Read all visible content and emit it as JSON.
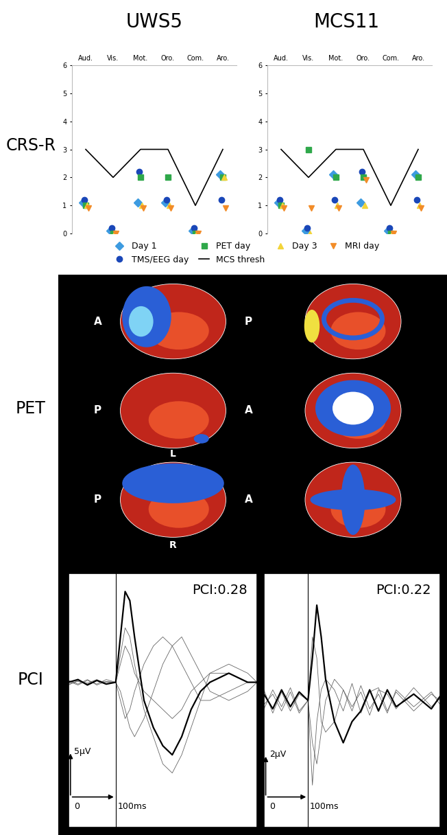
{
  "row_labels": [
    "CRS-R",
    "PET",
    "PCI"
  ],
  "pet": {
    "labels": [
      [
        "A",
        "P"
      ],
      [
        "P",
        "A"
      ],
      [
        "P",
        "A",
        "L",
        "R"
      ]
    ]
  },
  "chart_data": [
    {
      "type": "scatter",
      "title": "UWS5",
      "categories": [
        "Aud.",
        "Vis.",
        "Mot.",
        "Oro.",
        "Com.",
        "Aro."
      ],
      "ylim": [
        0,
        6
      ],
      "yticks": [
        0,
        1,
        2,
        3,
        4,
        5,
        6
      ],
      "grid": false,
      "legend": "lower center",
      "series": [
        {
          "name": "Day 1",
          "color": "#3d9be0",
          "marker": "diamond",
          "values": [
            1.1,
            0.1,
            1.1,
            1.1,
            0.1,
            2.1
          ]
        },
        {
          "name": "TMS/EEG day",
          "color": "#1a47b8",
          "marker": "circle",
          "values": [
            1.2,
            0.2,
            2.2,
            1.2,
            0.2,
            1.2
          ]
        },
        {
          "name": "PET day",
          "color": "#2fa84a",
          "marker": "square",
          "values": [
            1,
            0,
            2,
            2,
            0,
            2
          ]
        },
        {
          "name": "MCS thresh",
          "color": "#000000",
          "type": "line",
          "line_style": "solid",
          "values": [
            3,
            2,
            3,
            3,
            1,
            3
          ]
        },
        {
          "name": "Day 3",
          "color": "#f2d43a",
          "marker": "triangle_up",
          "values": [
            1,
            0,
            1,
            1,
            0,
            2
          ]
        },
        {
          "name": "MRI day",
          "color": "#f28c28",
          "marker": "triangle_down",
          "values": [
            0.9,
            0,
            0.9,
            0.9,
            0,
            0.9
          ]
        }
      ]
    },
    {
      "type": "scatter",
      "title": "MCS11",
      "categories": [
        "Aud.",
        "Vis.",
        "Mot.",
        "Oro.",
        "Com.",
        "Aro."
      ],
      "ylim": [
        0,
        6
      ],
      "yticks": [
        0,
        1,
        2,
        3,
        4,
        5,
        6
      ],
      "grid": false,
      "series": [
        {
          "name": "Day 1",
          "color": "#3d9be0",
          "marker": "diamond",
          "values": [
            1.1,
            0.1,
            2.1,
            1.1,
            0.1,
            2.1
          ]
        },
        {
          "name": "TMS/EEG day",
          "color": "#1a47b8",
          "marker": "circle",
          "values": [
            1.2,
            0.2,
            1.2,
            2.2,
            0.2,
            1.2
          ]
        },
        {
          "name": "PET day",
          "color": "#2fa84a",
          "marker": "square",
          "values": [
            1,
            3,
            2,
            2,
            0,
            2
          ]
        },
        {
          "name": "MCS thresh",
          "color": "#000000",
          "type": "line",
          "line_style": "solid",
          "values": [
            3,
            2,
            3,
            3,
            1,
            3
          ]
        },
        {
          "name": "Day 3",
          "color": "#f2d43a",
          "marker": "triangle_up",
          "values": [
            1,
            0,
            1,
            1,
            0,
            1
          ]
        },
        {
          "name": "MRI day",
          "color": "#f28c28",
          "marker": "triangle_down",
          "values": [
            0.9,
            0.9,
            0.9,
            1.9,
            0,
            0.9
          ]
        }
      ]
    },
    {
      "type": "line",
      "annotation": "PCI:0.28",
      "tick_labels": false,
      "stimulus": 0,
      "xlim": [
        -100,
        300
      ],
      "ylim": [
        -16,
        12
      ],
      "scale_bar": {
        "origin": "0",
        "x": {
          "value": 100,
          "label": "100ms"
        },
        "y": {
          "value": 5,
          "label": "5μV"
        }
      },
      "x": [
        -100,
        -80,
        -60,
        -40,
        -20,
        0,
        10,
        20,
        30,
        40,
        60,
        80,
        100,
        120,
        140,
        160,
        180,
        200,
        240,
        280,
        300
      ],
      "series": [
        {
          "color": "#000000",
          "line_style": "thick",
          "values": [
            0,
            0.3,
            -0.3,
            0.2,
            -0.2,
            0,
            5,
            10,
            9,
            5,
            -2,
            -5,
            -7,
            -8,
            -6,
            -3,
            -1,
            0,
            1,
            0,
            0
          ]
        },
        {
          "color": "#666666",
          "line_style": "thin",
          "values": [
            0.2,
            -0.2,
            0.3,
            -0.3,
            0.1,
            0,
            3,
            6,
            5,
            2,
            -3,
            -6,
            -9,
            -10,
            -8,
            -5,
            -2,
            1,
            2,
            1,
            0
          ]
        },
        {
          "color": "#666666",
          "line_style": "thin",
          "values": [
            -0.3,
            0.2,
            -0.1,
            0.3,
            -0.2,
            0,
            -2,
            -4,
            -3,
            -1,
            2,
            4,
            5,
            4,
            2,
            0,
            -2,
            -2,
            -1,
            0,
            0
          ]
        },
        {
          "color": "#666666",
          "line_style": "thin",
          "values": [
            0.1,
            -0.3,
            0.2,
            -0.2,
            0.3,
            0,
            2,
            4,
            3,
            1,
            -1,
            -2,
            -3,
            -4,
            -3,
            -1,
            0,
            1,
            1,
            0,
            0
          ]
        },
        {
          "color": "#666666",
          "line_style": "thin",
          "values": [
            -0.2,
            0.1,
            -0.2,
            0.2,
            0,
            0,
            -1,
            -3,
            -5,
            -6,
            -4,
            -1,
            2,
            4,
            5,
            3,
            1,
            -1,
            -2,
            -1,
            0
          ]
        }
      ]
    },
    {
      "type": "line",
      "annotation": "PCI:0.22",
      "tick_labels": false,
      "stimulus": 0,
      "xlim": [
        -100,
        300
      ],
      "ylim": [
        -6,
        6
      ],
      "scale_bar": {
        "origin": "0",
        "x": {
          "value": 100,
          "label": "100ms"
        },
        "y": {
          "value": 2,
          "label": "2μV"
        }
      },
      "x": [
        -100,
        -80,
        -60,
        -40,
        -20,
        0,
        10,
        20,
        30,
        40,
        60,
        80,
        100,
        120,
        140,
        160,
        180,
        200,
        240,
        280,
        300
      ],
      "series": [
        {
          "color": "#000000",
          "line_style": "thick",
          "values": [
            0.3,
            -0.4,
            0.5,
            -0.3,
            0.4,
            0,
            2,
            4.5,
            3,
            1,
            -1,
            -2,
            -1,
            -0.5,
            0.5,
            -0.5,
            0.5,
            -0.3,
            0.3,
            -0.4,
            0.2
          ]
        },
        {
          "color": "#666666",
          "line_style": "thin",
          "values": [
            -0.4,
            0.5,
            -0.3,
            0.6,
            -0.5,
            0,
            -4,
            -1,
            0.5,
            1,
            0.5,
            -0.5,
            0.8,
            -0.6,
            0.4,
            0.6,
            -0.5,
            0.4,
            -0.5,
            0.3,
            0
          ]
        },
        {
          "color": "#666666",
          "line_style": "thin",
          "values": [
            0.5,
            -0.6,
            0.4,
            -0.5,
            0.3,
            0,
            3,
            2,
            -1,
            -1.5,
            -1,
            0.5,
            -0.5,
            0.7,
            -0.4,
            0.3,
            -0.6,
            0.5,
            -0.3,
            0.4,
            -0.2
          ]
        },
        {
          "color": "#666666",
          "line_style": "thin",
          "values": [
            -0.2,
            0.3,
            -0.5,
            0.4,
            -0.6,
            0,
            -2,
            -3,
            -1.5,
            0,
            1,
            0.5,
            -0.3,
            0.4,
            -0.7,
            0.5,
            0.3,
            -0.4,
            0.6,
            -0.3,
            0.1
          ]
        }
      ]
    }
  ]
}
